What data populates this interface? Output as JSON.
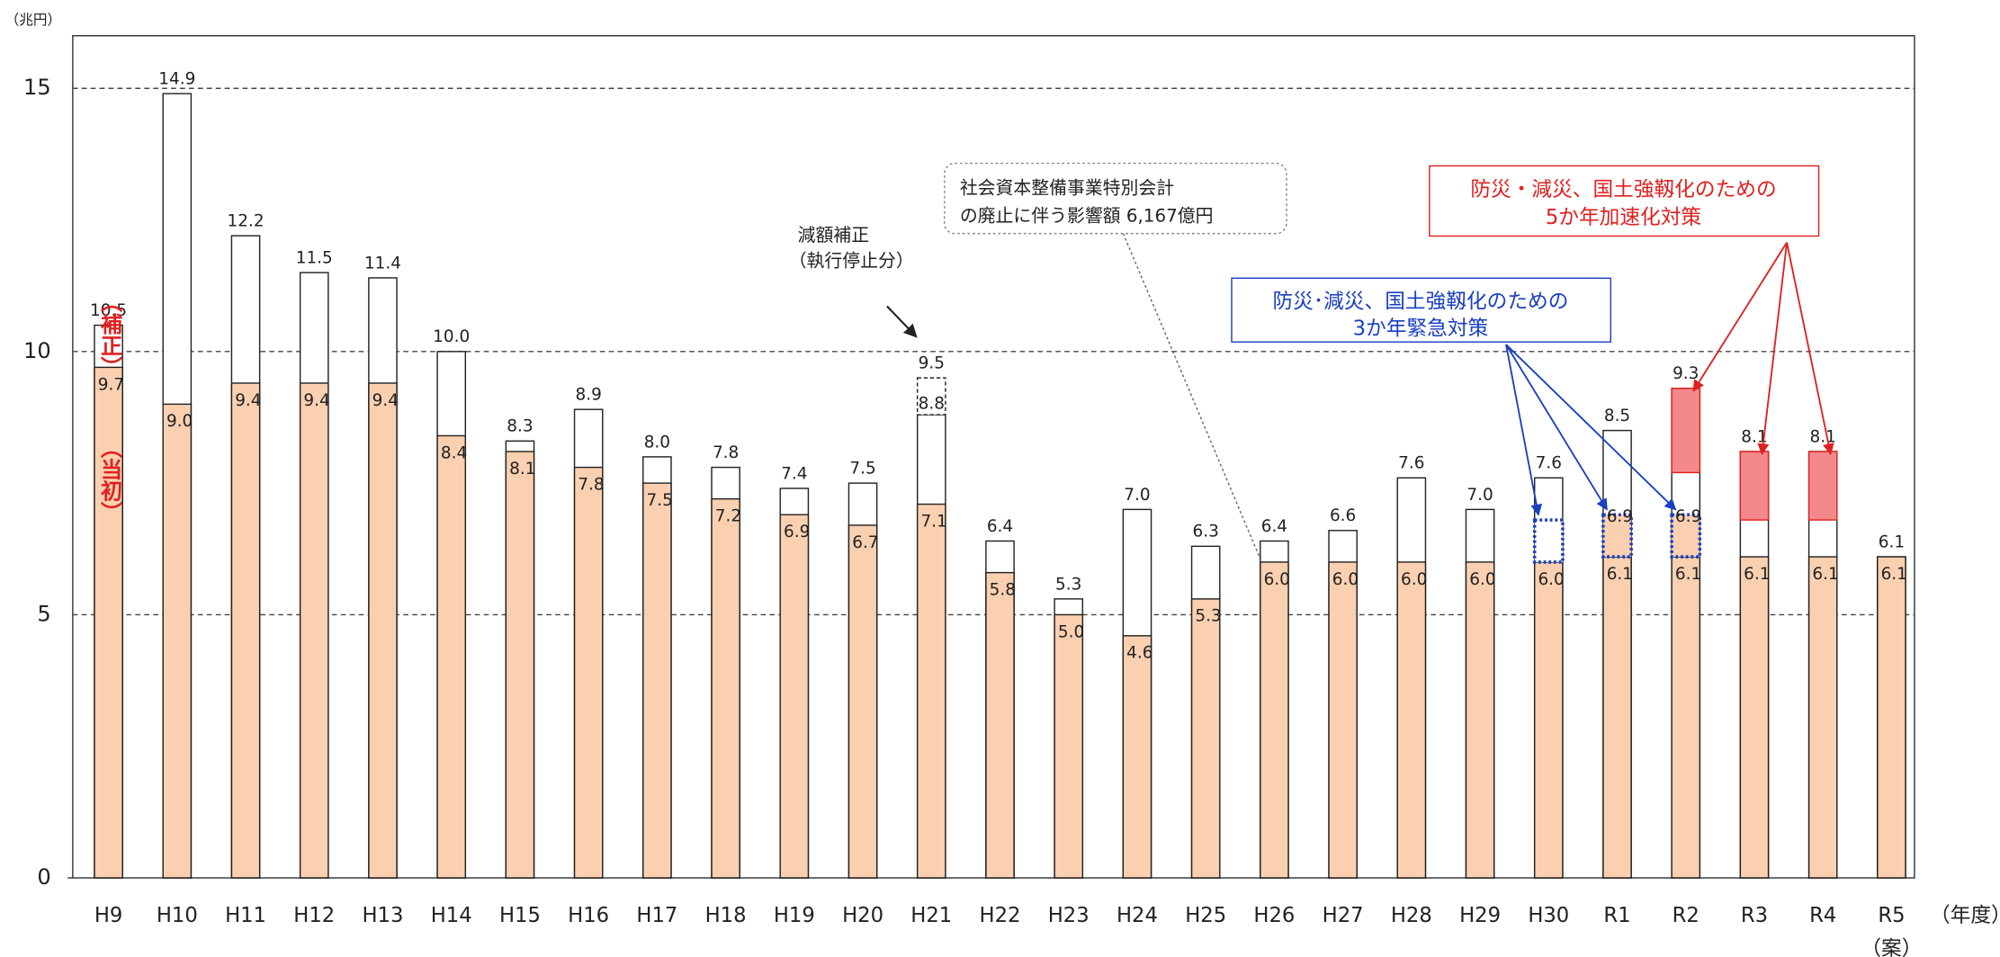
{
  "chart_data": {
    "type": "bar",
    "y_unit": "（兆円）",
    "x_unit": "（年度）",
    "x_sublabel": "（案）",
    "categories": [
      "H9",
      "H10",
      "H11",
      "H12",
      "H13",
      "H14",
      "H15",
      "H16",
      "H17",
      "H18",
      "H19",
      "H20",
      "H21",
      "H22",
      "H23",
      "H24",
      "H25",
      "H26",
      "H27",
      "H28",
      "H29",
      "H30",
      "R1",
      "R2",
      "R3",
      "R4",
      "R5"
    ],
    "series": [
      {
        "name": "（当初）",
        "color": "#fbd0b0",
        "values": [
          9.7,
          9.0,
          9.4,
          9.4,
          9.4,
          8.4,
          8.1,
          7.8,
          7.5,
          7.2,
          6.9,
          6.7,
          7.1,
          5.8,
          5.0,
          4.6,
          5.3,
          6.0,
          6.0,
          6.0,
          6.0,
          6.0,
          6.1,
          6.1,
          6.1,
          6.1,
          6.1
        ],
        "value_labels": [
          "9.7",
          "9.0",
          "9.4",
          "9.4",
          "9.4",
          "8.4",
          "8.1",
          "7.8",
          "7.5",
          "7.2",
          "6.9",
          "6.7",
          "7.1",
          "5.8",
          "5.0",
          "4.6",
          "5.3",
          "6.0",
          "6.0",
          "6.0",
          "6.0",
          "6.0",
          "6.1",
          "6.1",
          "6.1",
          "6.1",
          "6.1"
        ]
      },
      {
        "name": "（補正）",
        "color": "#ffffff",
        "values": [
          10.5,
          14.9,
          12.2,
          11.5,
          11.4,
          10.0,
          8.3,
          8.9,
          8.0,
          7.8,
          7.4,
          7.5,
          9.5,
          6.4,
          5.3,
          7.0,
          6.3,
          6.4,
          6.6,
          7.6,
          7.0,
          7.6,
          8.5,
          9.3,
          8.1,
          8.1,
          6.1
        ],
        "value_labels": [
          "10.5",
          "14.9",
          "12.2",
          "11.5",
          "11.4",
          "10.0",
          "8.3",
          "8.9",
          "8.0",
          "7.8",
          "7.4",
          "7.5",
          "9.5",
          "6.4",
          "5.3",
          "7.0",
          "6.3",
          "6.4",
          "6.6",
          "7.6",
          "7.0",
          "7.6",
          "8.5",
          "9.3",
          "8.1",
          "8.1",
          "6.1"
        ]
      }
    ],
    "ylim": [
      0,
      16
    ],
    "yticks": [
      0,
      5,
      10,
      15
    ],
    "grid": true,
    "reduction": {
      "category": "H21",
      "from": 8.8,
      "to": 9.5,
      "text": [
        "減額補正",
        "（執行停止分）"
      ]
    },
    "special_account_note": [
      "社会資本整備事業特別会計",
      "の廃止に伴う影響額 6,167億円"
    ],
    "emergency_3yr": {
      "text": [
        "防災･減災、国土強靱化のための",
        "3か年緊急対策"
      ],
      "color": "#1a3fc0",
      "segments": [
        {
          "category": "H30",
          "from": 6.0,
          "to": 6.8,
          "fill": "#ffffff"
        },
        {
          "category": "R1",
          "from": 6.1,
          "to": 6.9,
          "fill": "#fbd0b0",
          "value_label": "6.9"
        },
        {
          "category": "R2",
          "from": 6.1,
          "to": 6.9,
          "fill": "#fbd0b0",
          "value_label": "6.9"
        }
      ]
    },
    "acceleration_5yr": {
      "text": [
        "防災・減災、国土強靱化のための",
        "5か年加速化対策"
      ],
      "color": "#e02020",
      "fill": "#f4898c",
      "segments": [
        {
          "category": "R2",
          "from": 7.7,
          "to": 9.3
        },
        {
          "category": "R3",
          "from": 6.8,
          "to": 8.1
        },
        {
          "category": "R4",
          "from": 6.8,
          "to": 8.1
        }
      ]
    }
  }
}
